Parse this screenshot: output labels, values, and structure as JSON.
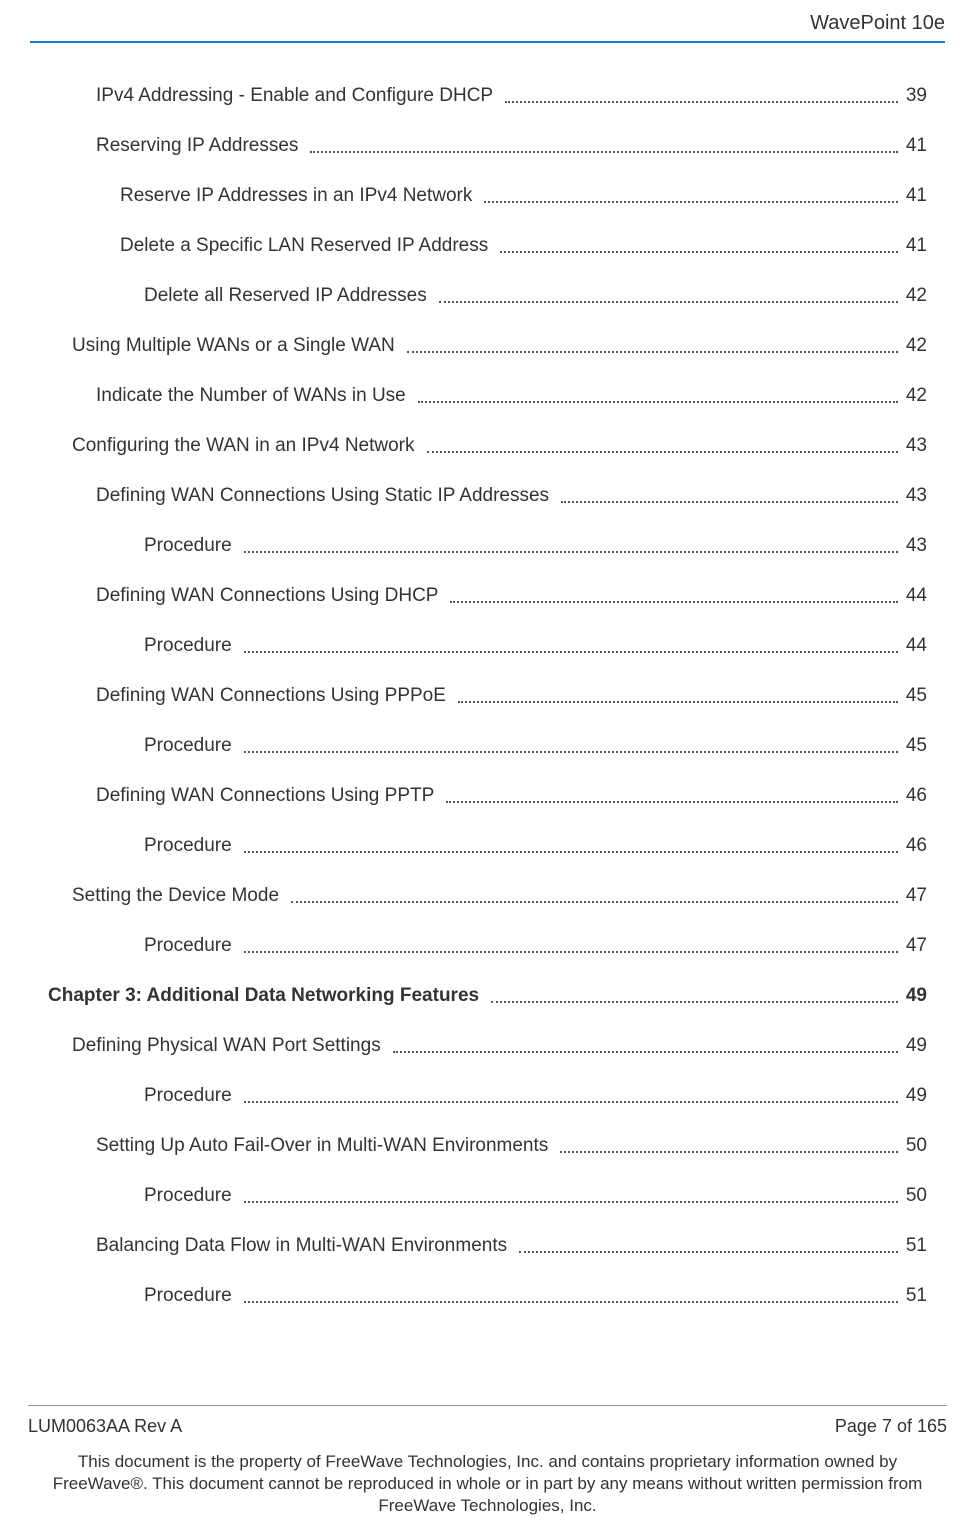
{
  "header": {
    "title": "WavePoint 10e"
  },
  "accent_color": "#1a7fc9",
  "toc": [
    {
      "indent": 2,
      "title": "IPv4 Addressing - Enable and Configure DHCP",
      "page": "39",
      "bold": false
    },
    {
      "indent": 2,
      "title": "Reserving IP Addresses",
      "page": "41",
      "bold": false
    },
    {
      "indent": 3,
      "title": "Reserve IP Addresses in an IPv4 Network",
      "page": "41",
      "bold": false
    },
    {
      "indent": 3,
      "title": "Delete a Specific LAN Reserved IP Address",
      "page": "41",
      "bold": false
    },
    {
      "indent": 4,
      "title": "Delete all Reserved IP Addresses",
      "page": "42",
      "bold": false
    },
    {
      "indent": 1,
      "title": "Using Multiple WANs or a Single WAN",
      "page": "42",
      "bold": false
    },
    {
      "indent": 2,
      "title": "Indicate the Number of WANs in Use",
      "page": "42",
      "bold": false
    },
    {
      "indent": 1,
      "title": "Configuring the WAN in an IPv4 Network",
      "page": "43",
      "bold": false
    },
    {
      "indent": 2,
      "title": "Defining WAN Connections Using Static IP Addresses",
      "page": "43",
      "bold": false
    },
    {
      "indent": 4,
      "title": "Procedure",
      "page": "43",
      "bold": false
    },
    {
      "indent": 2,
      "title": "Defining WAN Connections Using DHCP",
      "page": "44",
      "bold": false
    },
    {
      "indent": 4,
      "title": "Procedure",
      "page": "44",
      "bold": false
    },
    {
      "indent": 2,
      "title": "Defining WAN Connections Using PPPoE",
      "page": "45",
      "bold": false
    },
    {
      "indent": 4,
      "title": "Procedure",
      "page": "45",
      "bold": false
    },
    {
      "indent": 2,
      "title": "Defining WAN Connections Using PPTP",
      "page": "46",
      "bold": false
    },
    {
      "indent": 4,
      "title": "Procedure",
      "page": "46",
      "bold": false
    },
    {
      "indent": 1,
      "title": "Setting the Device Mode",
      "page": "47",
      "bold": false
    },
    {
      "indent": 4,
      "title": "Procedure",
      "page": "47",
      "bold": false
    },
    {
      "indent": 0,
      "title": "Chapter 3: Additional Data Networking Features",
      "page": "49",
      "bold": true
    },
    {
      "indent": 1,
      "title": "Defining Physical WAN Port Settings",
      "page": "49",
      "bold": false
    },
    {
      "indent": 4,
      "title": "Procedure",
      "page": "49",
      "bold": false
    },
    {
      "indent": 2,
      "title": "Setting Up Auto Fail-Over in Multi-WAN Environments",
      "page": "50",
      "bold": false
    },
    {
      "indent": 4,
      "title": "Procedure",
      "page": "50",
      "bold": false
    },
    {
      "indent": 2,
      "title": "Balancing Data Flow in Multi-WAN Environments",
      "page": "51",
      "bold": false
    },
    {
      "indent": 4,
      "title": "Procedure",
      "page": "51",
      "bold": false
    }
  ],
  "footer": {
    "left": "LUM0063AA Rev A",
    "right": "Page 7 of 165",
    "disclaimer": "This document is the property of FreeWave Technologies, Inc. and contains proprietary information owned by FreeWave®. This document cannot be reproduced in whole or in part by any means without written permission from FreeWave Technologies, Inc."
  }
}
